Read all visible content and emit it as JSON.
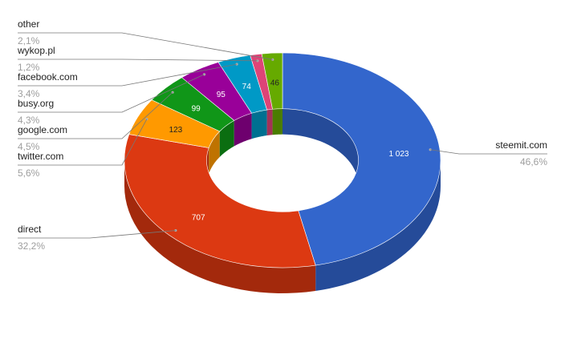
{
  "chart_data": {
    "type": "pie",
    "variant": "3d-donut",
    "series": [
      {
        "name": "steemit.com",
        "value": 1023,
        "value_label": "1 023",
        "percent_label": "46,6%",
        "color": "#3366cc",
        "side_color": "#254b99",
        "value_color": "#ffffff"
      },
      {
        "name": "direct",
        "value": 707,
        "value_label": "707",
        "percent_label": "32,2%",
        "color": "#dc3912",
        "side_color": "#a3290c",
        "value_color": "#ffffff"
      },
      {
        "name": "twitter.com",
        "value": 123,
        "value_label": "123",
        "percent_label": "5,6%",
        "color": "#ff9900",
        "side_color": "#bf7300",
        "value_color": "#222222"
      },
      {
        "name": "google.com",
        "value": 99,
        "value_label": "99",
        "percent_label": "4,5%",
        "color": "#109618",
        "side_color": "#0b6e11",
        "value_color": "#ffffff"
      },
      {
        "name": "busy.org",
        "value": 95,
        "value_label": "95",
        "percent_label": "4,3%",
        "color": "#990099",
        "side_color": "#6e006e",
        "value_color": "#ffffff"
      },
      {
        "name": "facebook.com",
        "value": 74,
        "value_label": "74",
        "percent_label": "3,4%",
        "color": "#0099c6",
        "side_color": "#007091",
        "value_color": "#ffffff"
      },
      {
        "name": "wykop.pl",
        "value": 26,
        "value_label": "",
        "percent_label": "1,2%",
        "color": "#dd4477",
        "side_color": "#a33257",
        "value_color": "#ffffff"
      },
      {
        "name": "other",
        "value": 46,
        "value_label": "46",
        "percent_label": "2,1%",
        "color": "#66aa00",
        "side_color": "#4b7d00",
        "value_color": "#222222"
      }
    ],
    "legend_placement": "labeled-leaders"
  }
}
